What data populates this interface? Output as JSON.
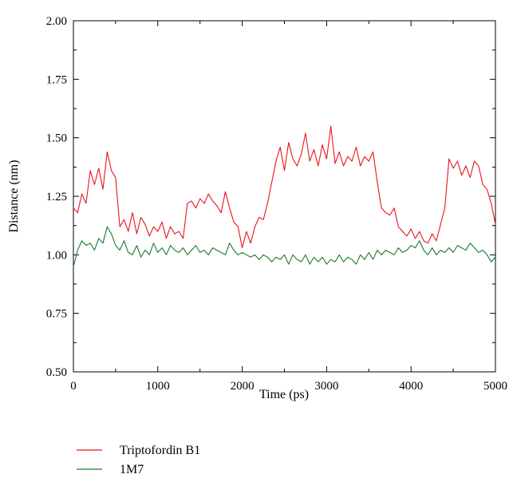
{
  "chart_data": {
    "type": "line",
    "title": "",
    "xlabel": "Time (ps)",
    "ylabel": "Distance (nm)",
    "xlim": [
      0,
      5000
    ],
    "ylim": [
      0.5,
      2.0
    ],
    "x_ticks": [
      "0",
      "1000",
      "2000",
      "3000",
      "4000",
      "5000"
    ],
    "y_ticks": [
      "0.50",
      "0.75",
      "1.00",
      "1.25",
      "1.50",
      "1.75",
      "2.00"
    ],
    "grid": false,
    "legend_position": "bottom-left",
    "series": [
      {
        "name": "Triptofordin B1",
        "color": "#e8141c",
        "x": [
          0,
          50,
          100,
          150,
          200,
          250,
          300,
          350,
          400,
          450,
          500,
          550,
          600,
          650,
          700,
          750,
          800,
          850,
          900,
          950,
          1000,
          1050,
          1100,
          1150,
          1200,
          1250,
          1300,
          1350,
          1400,
          1450,
          1500,
          1550,
          1600,
          1650,
          1700,
          1750,
          1800,
          1850,
          1900,
          1950,
          2000,
          2050,
          2100,
          2150,
          2200,
          2250,
          2300,
          2350,
          2400,
          2450,
          2500,
          2550,
          2600,
          2650,
          2700,
          2750,
          2800,
          2850,
          2900,
          2950,
          3000,
          3050,
          3100,
          3150,
          3200,
          3250,
          3300,
          3350,
          3400,
          3450,
          3500,
          3550,
          3600,
          3650,
          3700,
          3750,
          3800,
          3850,
          3900,
          3950,
          4000,
          4050,
          4100,
          4150,
          4200,
          4250,
          4300,
          4350,
          4400,
          4450,
          4500,
          4550,
          4600,
          4650,
          4700,
          4750,
          4800,
          4850,
          4900,
          4950,
          5000
        ],
        "values": [
          1.2,
          1.18,
          1.26,
          1.22,
          1.36,
          1.3,
          1.37,
          1.28,
          1.44,
          1.36,
          1.33,
          1.12,
          1.15,
          1.1,
          1.18,
          1.09,
          1.16,
          1.13,
          1.08,
          1.12,
          1.1,
          1.14,
          1.07,
          1.12,
          1.09,
          1.1,
          1.07,
          1.22,
          1.23,
          1.2,
          1.24,
          1.22,
          1.26,
          1.23,
          1.21,
          1.18,
          1.27,
          1.2,
          1.14,
          1.12,
          1.03,
          1.1,
          1.05,
          1.12,
          1.16,
          1.15,
          1.22,
          1.31,
          1.4,
          1.46,
          1.36,
          1.48,
          1.41,
          1.38,
          1.43,
          1.52,
          1.4,
          1.45,
          1.38,
          1.47,
          1.41,
          1.55,
          1.39,
          1.44,
          1.38,
          1.42,
          1.4,
          1.46,
          1.38,
          1.42,
          1.4,
          1.44,
          1.31,
          1.2,
          1.18,
          1.17,
          1.2,
          1.12,
          1.1,
          1.08,
          1.11,
          1.07,
          1.1,
          1.06,
          1.05,
          1.09,
          1.06,
          1.13,
          1.2,
          1.41,
          1.37,
          1.4,
          1.34,
          1.38,
          1.33,
          1.4,
          1.38,
          1.3,
          1.28,
          1.22,
          1.13
        ]
      },
      {
        "name": "1M7",
        "color": "#1a7a30",
        "x": [
          0,
          50,
          100,
          150,
          200,
          250,
          300,
          350,
          400,
          450,
          500,
          550,
          600,
          650,
          700,
          750,
          800,
          850,
          900,
          950,
          1000,
          1050,
          1100,
          1150,
          1200,
          1250,
          1300,
          1350,
          1400,
          1450,
          1500,
          1550,
          1600,
          1650,
          1700,
          1750,
          1800,
          1850,
          1900,
          1950,
          2000,
          2050,
          2100,
          2150,
          2200,
          2250,
          2300,
          2350,
          2400,
          2450,
          2500,
          2550,
          2600,
          2650,
          2700,
          2750,
          2800,
          2850,
          2900,
          2950,
          3000,
          3050,
          3100,
          3150,
          3200,
          3250,
          3300,
          3350,
          3400,
          3450,
          3500,
          3550,
          3600,
          3650,
          3700,
          3750,
          3800,
          3850,
          3900,
          3950,
          4000,
          4050,
          4100,
          4150,
          4200,
          4250,
          4300,
          4350,
          4400,
          4450,
          4500,
          4550,
          4600,
          4650,
          4700,
          4750,
          4800,
          4850,
          4900,
          4950,
          5000
        ],
        "values": [
          0.95,
          1.02,
          1.06,
          1.04,
          1.05,
          1.02,
          1.07,
          1.05,
          1.12,
          1.09,
          1.04,
          1.02,
          1.06,
          1.01,
          1.0,
          1.04,
          0.99,
          1.02,
          1.0,
          1.05,
          1.01,
          1.03,
          1.0,
          1.04,
          1.02,
          1.01,
          1.03,
          1.0,
          1.02,
          1.04,
          1.01,
          1.02,
          1.0,
          1.03,
          1.02,
          1.01,
          1.0,
          1.05,
          1.02,
          1.0,
          1.01,
          1.0,
          0.99,
          1.0,
          0.98,
          1.0,
          0.99,
          0.97,
          0.99,
          0.98,
          1.0,
          0.96,
          1.0,
          0.98,
          0.97,
          1.0,
          0.96,
          0.99,
          0.97,
          0.99,
          0.96,
          0.98,
          0.97,
          1.0,
          0.97,
          0.99,
          0.98,
          0.96,
          1.0,
          0.98,
          1.01,
          0.98,
          1.02,
          1.0,
          1.02,
          1.01,
          1.0,
          1.03,
          1.01,
          1.02,
          1.04,
          1.03,
          1.06,
          1.02,
          1.0,
          1.03,
          1.0,
          1.02,
          1.01,
          1.03,
          1.01,
          1.04,
          1.03,
          1.02,
          1.05,
          1.03,
          1.01,
          1.02,
          1.0,
          0.97,
          0.99
        ]
      }
    ]
  }
}
